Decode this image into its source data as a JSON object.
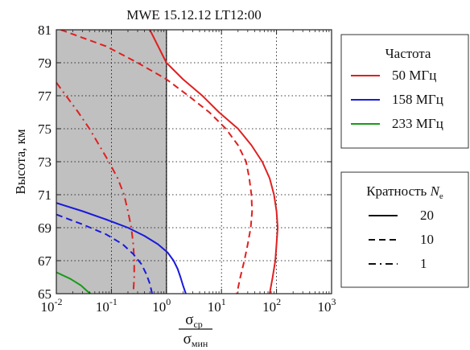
{
  "chart_data": {
    "type": "line",
    "title": "MWE 15.12.12 LT12:00",
    "ylabel": "Высота, км",
    "xlabel_numerator": "σ",
    "xlabel_numerator_sub": "ср",
    "xlabel_denominator": "σ",
    "xlabel_denominator_sub": "мин",
    "xscale": "log",
    "xlim": [
      0.01,
      1000
    ],
    "ylim": [
      65,
      81
    ],
    "x_ticks": [
      {
        "base": "10",
        "exp": "-2"
      },
      {
        "base": "10",
        "exp": "-1"
      },
      {
        "base": "10",
        "exp": "0"
      },
      {
        "base": "10",
        "exp": "1"
      },
      {
        "base": "10",
        "exp": "2"
      },
      {
        "base": "10",
        "exp": "3"
      }
    ],
    "y_ticks": [
      "65",
      "67",
      "69",
      "71",
      "73",
      "75",
      "77",
      "79",
      "81"
    ],
    "grid": "dotted",
    "shaded_region": {
      "x_from": 0.01,
      "x_to": 1,
      "color": "#c0c0c0"
    },
    "legend_frequency": {
      "title": "Частота",
      "placement": "right-top",
      "items": [
        {
          "label": "50 МГц",
          "color": "#e02020"
        },
        {
          "label": "158 МГц",
          "color": "#1a1adc"
        },
        {
          "label": "233 МГц",
          "color": "#1a9a1a"
        }
      ]
    },
    "legend_multiplicity": {
      "title": "Кратность ",
      "title_var": "N",
      "title_sub": "e",
      "placement": "right-bottom",
      "items": [
        {
          "label": "20",
          "dash": "solid"
        },
        {
          "label": "10",
          "dash": "dashed"
        },
        {
          "label": "1",
          "dash": "dashdot"
        }
      ]
    },
    "series": [
      {
        "freq": "50 МГц",
        "ne": "20",
        "color": "#e02020",
        "dash": "solid",
        "points": [
          [
            0.5,
            81
          ],
          [
            1.0,
            79
          ],
          [
            2.0,
            78
          ],
          [
            4.5,
            77
          ],
          [
            9,
            76
          ],
          [
            20,
            75
          ],
          [
            35,
            74
          ],
          [
            55,
            73
          ],
          [
            75,
            72
          ],
          [
            90,
            71
          ],
          [
            100,
            70
          ],
          [
            105,
            69
          ],
          [
            100,
            68
          ],
          [
            95,
            67
          ],
          [
            85,
            66
          ],
          [
            75,
            65
          ]
        ]
      },
      {
        "freq": "50 МГц",
        "ne": "10",
        "color": "#e02020",
        "dash": "dashed",
        "points": [
          [
            0.012,
            81
          ],
          [
            0.08,
            80
          ],
          [
            0.3,
            79
          ],
          [
            1.0,
            78
          ],
          [
            2.5,
            77
          ],
          [
            6,
            76
          ],
          [
            12,
            75
          ],
          [
            20,
            74
          ],
          [
            28,
            73
          ],
          [
            32,
            72
          ],
          [
            35,
            71
          ],
          [
            36,
            70
          ],
          [
            34,
            69
          ],
          [
            30,
            68
          ],
          [
            26,
            67
          ],
          [
            22,
            66
          ],
          [
            19,
            65
          ]
        ]
      },
      {
        "freq": "50 МГц",
        "ne": "1",
        "color": "#e02020",
        "dash": "dashdot",
        "points": [
          [
            0.01,
            77.8
          ],
          [
            0.015,
            77
          ],
          [
            0.025,
            76
          ],
          [
            0.04,
            75
          ],
          [
            0.06,
            74
          ],
          [
            0.09,
            73
          ],
          [
            0.13,
            72
          ],
          [
            0.17,
            71
          ],
          [
            0.2,
            70
          ],
          [
            0.23,
            69
          ],
          [
            0.25,
            68
          ],
          [
            0.26,
            67
          ],
          [
            0.26,
            66
          ],
          [
            0.25,
            65
          ]
        ]
      },
      {
        "freq": "158 МГц",
        "ne": "20",
        "color": "#1a1adc",
        "dash": "solid",
        "points": [
          [
            0.01,
            70.5
          ],
          [
            0.03,
            70
          ],
          [
            0.08,
            69.5
          ],
          [
            0.2,
            69
          ],
          [
            0.4,
            68.5
          ],
          [
            0.7,
            68
          ],
          [
            1.05,
            67.5
          ],
          [
            1.35,
            67
          ],
          [
            1.6,
            66.5
          ],
          [
            1.8,
            66
          ],
          [
            2.0,
            65.5
          ],
          [
            2.25,
            65
          ]
        ]
      },
      {
        "freq": "158 МГц",
        "ne": "10",
        "color": "#1a1adc",
        "dash": "dashed",
        "points": [
          [
            0.01,
            69.8
          ],
          [
            0.03,
            69.2
          ],
          [
            0.08,
            68.6
          ],
          [
            0.16,
            68
          ],
          [
            0.25,
            67.4
          ],
          [
            0.35,
            66.8
          ],
          [
            0.43,
            66.2
          ],
          [
            0.5,
            65.6
          ],
          [
            0.55,
            65
          ]
        ]
      },
      {
        "freq": "233 МГц",
        "ne": "20",
        "color": "#1a9a1a",
        "dash": "solid",
        "points": [
          [
            0.01,
            66.3
          ],
          [
            0.018,
            65.9
          ],
          [
            0.028,
            65.5
          ],
          [
            0.038,
            65.1
          ],
          [
            0.042,
            65
          ]
        ]
      }
    ]
  }
}
